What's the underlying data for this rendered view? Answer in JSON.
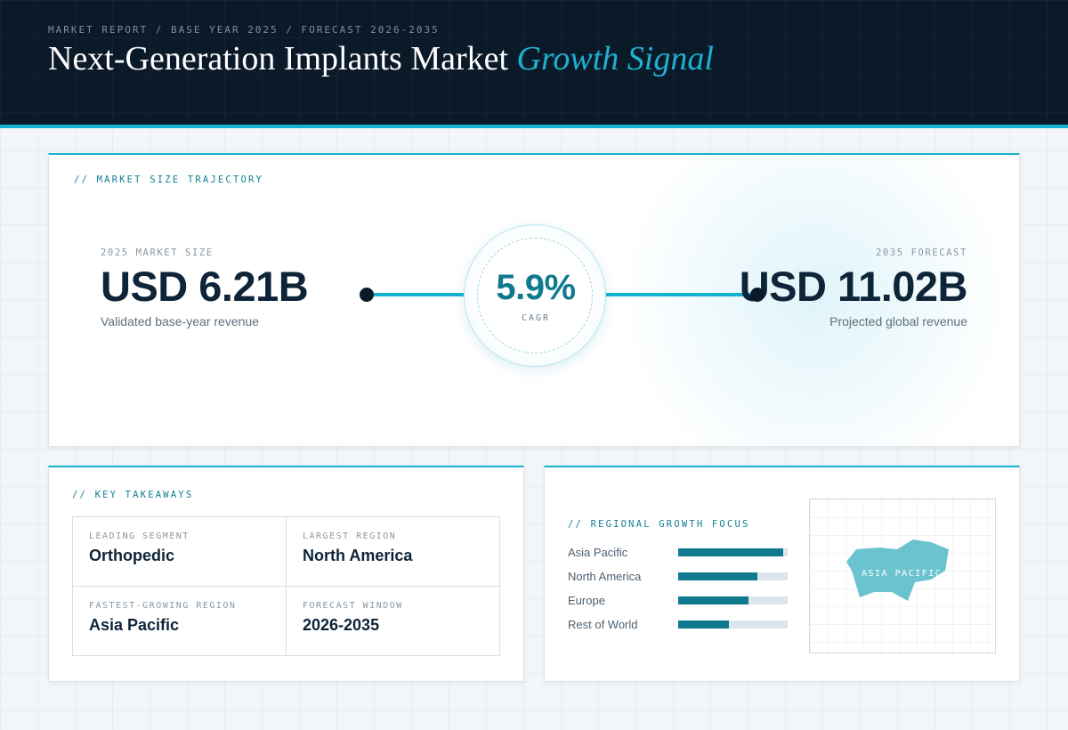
{
  "header": {
    "breadcrumb": "MARKET REPORT / BASE YEAR 2025 / FORECAST 2026-2035",
    "title": "Next-Generation Implants Market",
    "title_accent": "Growth Signal"
  },
  "trajectory": {
    "label": "// MARKET SIZE TRAJECTORY",
    "start": {
      "kicker": "2025 MARKET SIZE",
      "value": "USD 6.21B",
      "caption": "Validated base-year revenue"
    },
    "end": {
      "kicker": "2035 FORECAST",
      "value": "USD 11.02B",
      "caption": "Projected global revenue"
    },
    "cagr": {
      "value": "5.9%",
      "label": "CAGR"
    }
  },
  "takeaways": {
    "label": "// KEY TAKEAWAYS",
    "items": [
      {
        "key": "LEADING SEGMENT",
        "value": "Orthopedic"
      },
      {
        "key": "LARGEST REGION",
        "value": "North America"
      },
      {
        "key": "FASTEST-GROWING REGION",
        "value": "Asia Pacific"
      },
      {
        "key": "FORECAST WINDOW",
        "value": "2026-2035"
      }
    ]
  },
  "regional": {
    "label": "// REGIONAL GROWTH FOCUS",
    "bars": [
      {
        "name": "Asia Pacific",
        "level": 0.96
      },
      {
        "name": "North America",
        "level": 0.72
      },
      {
        "name": "Europe",
        "level": 0.64
      },
      {
        "name": "Rest of World",
        "level": 0.46
      }
    ],
    "map_label": "ASIA PACIFIC"
  },
  "colors": {
    "header_bg": "#0b1a29",
    "accent": "#16b3cf",
    "bar_fill": "#0f7a8e",
    "map_shape": "#6cc3d0"
  }
}
